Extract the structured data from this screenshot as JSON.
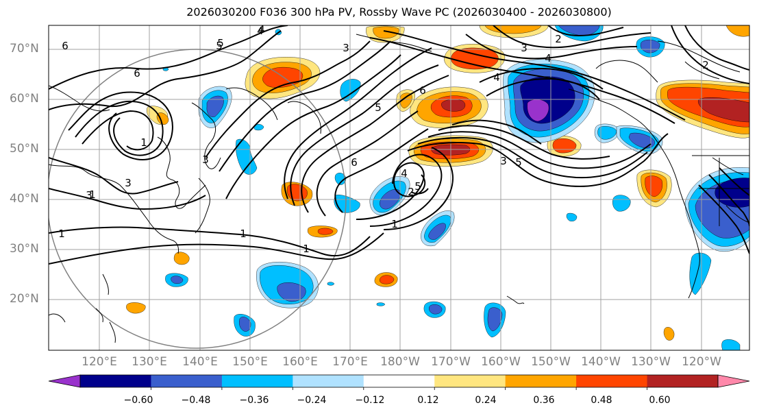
{
  "title": "2026030200 F036 300 hPa PV, Rossby Wave PC (2026030400 - 2026030800)",
  "lat_labels": [
    "70°N",
    "60°N",
    "50°N",
    "40°N",
    "30°N",
    "20°N"
  ],
  "lon_labels": [
    "120°E",
    "130°E",
    "140°E",
    "150°E",
    "160°E",
    "170°E",
    "180°W",
    "170°W",
    "160°W",
    "150°W",
    "140°W",
    "130°W",
    "120°W"
  ],
  "contour_labels": [
    "6",
    "5",
    "4",
    "3",
    "2",
    "1",
    "6",
    "5",
    "4",
    "3",
    "1",
    "1",
    "1",
    "6",
    "5",
    "3",
    "2",
    "1",
    "4",
    "3",
    "2",
    "6",
    "5",
    "4",
    "3",
    "1",
    "4",
    "5",
    "3"
  ],
  "colorbar": {
    "tick_labels": [
      "−0.60",
      "−0.48",
      "−0.36",
      "−0.24",
      "−0.12",
      "0.12",
      "0.24",
      "0.36",
      "0.48",
      "0.60"
    ],
    "colors": [
      "#9932cc",
      "#00008b",
      "#3a5fcd",
      "#00bfff",
      "#b0e2ff",
      "#ffffff",
      "#ffe680",
      "#ffa500",
      "#ff4500",
      "#b22222",
      "#ff88aa"
    ]
  },
  "colors": {
    "neg_strong": "#00008b",
    "neg_mid": "#3a5fcd",
    "neg_light": "#00bfff",
    "neg_faint": "#b0e2ff",
    "neg_extreme": "#9932cc",
    "pos_faint": "#ffe680",
    "pos_light": "#ffa500",
    "pos_mid": "#ff4500",
    "pos_strong": "#b22222",
    "pos_extreme": "#ff88aa",
    "grid": "#a0a0a0",
    "contour": "#000000"
  }
}
